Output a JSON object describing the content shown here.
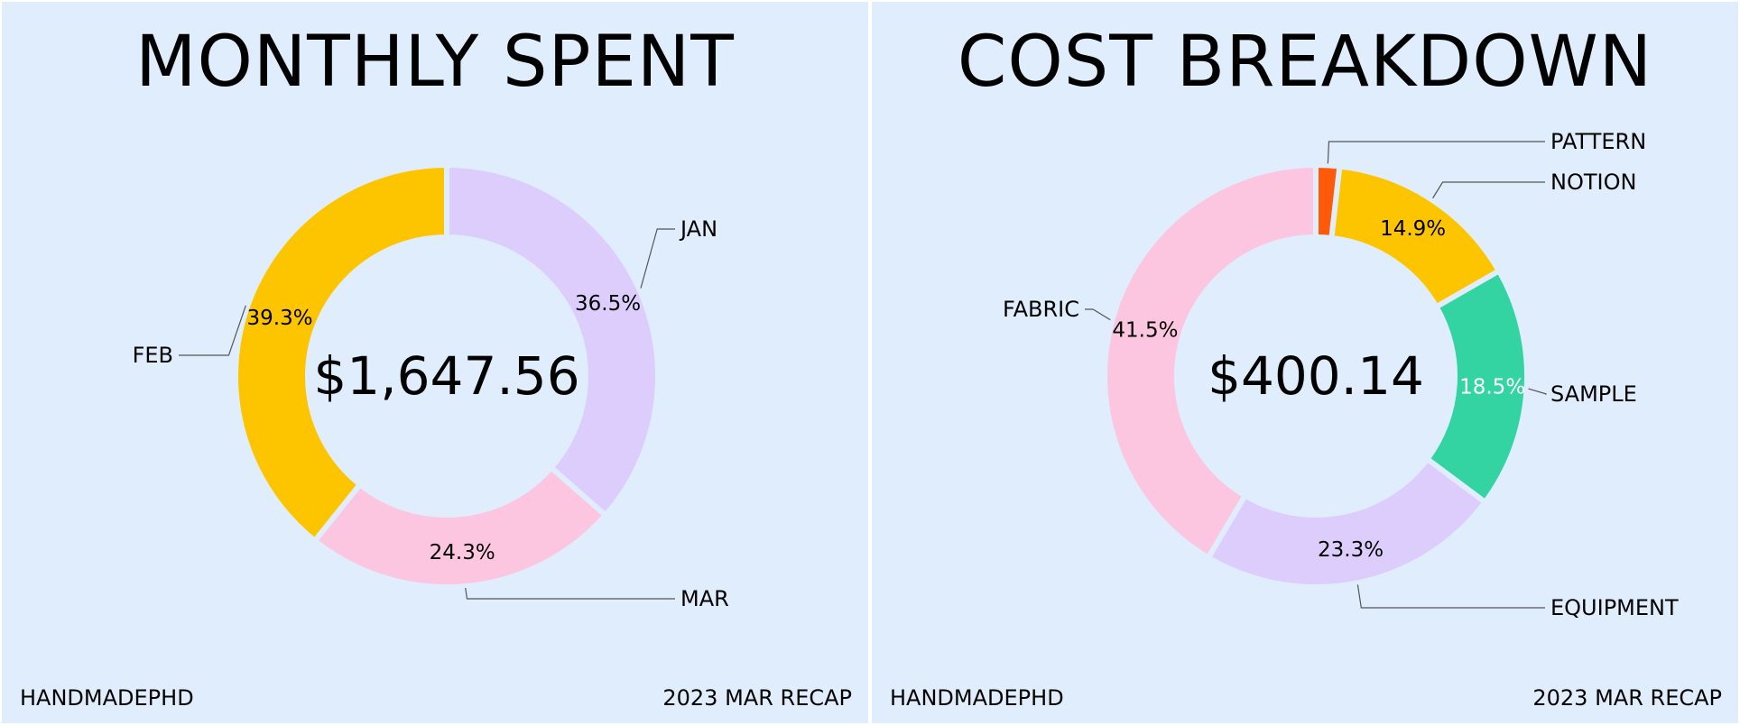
{
  "footer": {
    "brand": "HANDMADEPHD",
    "recap": "2023 MAR RECAP"
  },
  "chart_data": [
    {
      "type": "pie",
      "title": "MONTHLY SPENT",
      "center_label": "$1,647.56",
      "slices": [
        {
          "label": "JAN",
          "percent_label": "36.5%",
          "value": 36.5,
          "color": "#dccdfc"
        },
        {
          "label": "MAR",
          "percent_label": "24.3%",
          "value": 24.3,
          "color": "#fdc6e0"
        },
        {
          "label": "FEB",
          "percent_label": "39.3%",
          "value": 39.3,
          "color": "#fdc500"
        }
      ]
    },
    {
      "type": "pie",
      "title": "COST BREAKDOWN",
      "center_label": "$400.14",
      "slices": [
        {
          "label": "PATTERN",
          "percent_label": "",
          "value": 1.8,
          "color": "#ff5a0a"
        },
        {
          "label": "NOTION",
          "percent_label": "14.9%",
          "value": 14.9,
          "color": "#fdc500"
        },
        {
          "label": "SAMPLE",
          "percent_label": "18.5%",
          "value": 18.5,
          "color": "#33d4a2"
        },
        {
          "label": "EQUIPMENT",
          "percent_label": "23.3%",
          "value": 23.3,
          "color": "#dccdfc"
        },
        {
          "label": "FABRIC",
          "percent_label": "41.5%",
          "value": 41.5,
          "color": "#fdc6e0"
        }
      ]
    }
  ]
}
